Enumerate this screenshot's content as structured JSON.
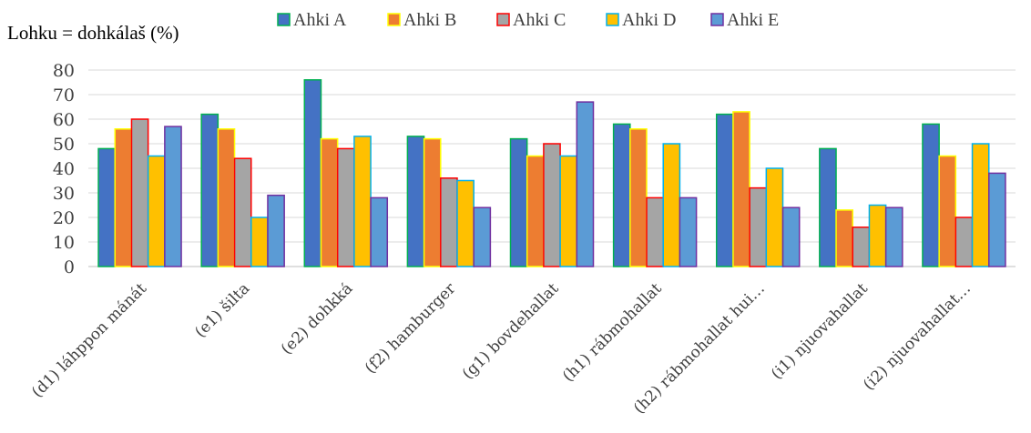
{
  "chart_data": {
    "type": "bar",
    "title": "",
    "ylabel": "Lohku = dohkálaš (%)",
    "xlabel": "",
    "ylim": [
      0,
      80
    ],
    "yticks": [
      0,
      10,
      20,
      30,
      40,
      50,
      60,
      70,
      80
    ],
    "legend_position": "top",
    "grid": true,
    "categories": [
      "(d1) láhppon mánát",
      "(e1) šilta",
      "(e2) dohkká",
      "(f2) hamburger",
      "(g1) bovdehallat",
      "(h1) rábmohallat",
      "(h2) rábmohallat hui…",
      "(i1) njuovahallat",
      "(i2) njuovahallat…"
    ],
    "series": [
      {
        "name": "Ahki A",
        "fill": "#4472c4",
        "stroke": "#00b050",
        "values": [
          48,
          62,
          76,
          53,
          52,
          58,
          62,
          48,
          58
        ]
      },
      {
        "name": "Ahki B",
        "fill": "#ed7d31",
        "stroke": "#ffff00",
        "values": [
          56,
          56,
          52,
          52,
          45,
          56,
          63,
          23,
          45
        ]
      },
      {
        "name": "Ahki C",
        "fill": "#a5a5a5",
        "stroke": "#ff0000",
        "values": [
          60,
          44,
          48,
          36,
          50,
          28,
          32,
          16,
          20
        ]
      },
      {
        "name": "Ahki D",
        "fill": "#ffc000",
        "stroke": "#00b0f0",
        "values": [
          45,
          20,
          53,
          35,
          45,
          50,
          40,
          25,
          50
        ]
      },
      {
        "name": "Ahki E",
        "fill": "#5b9bd5",
        "stroke": "#7030a0",
        "values": [
          57,
          29,
          28,
          24,
          67,
          28,
          24,
          24,
          38
        ]
      }
    ]
  }
}
